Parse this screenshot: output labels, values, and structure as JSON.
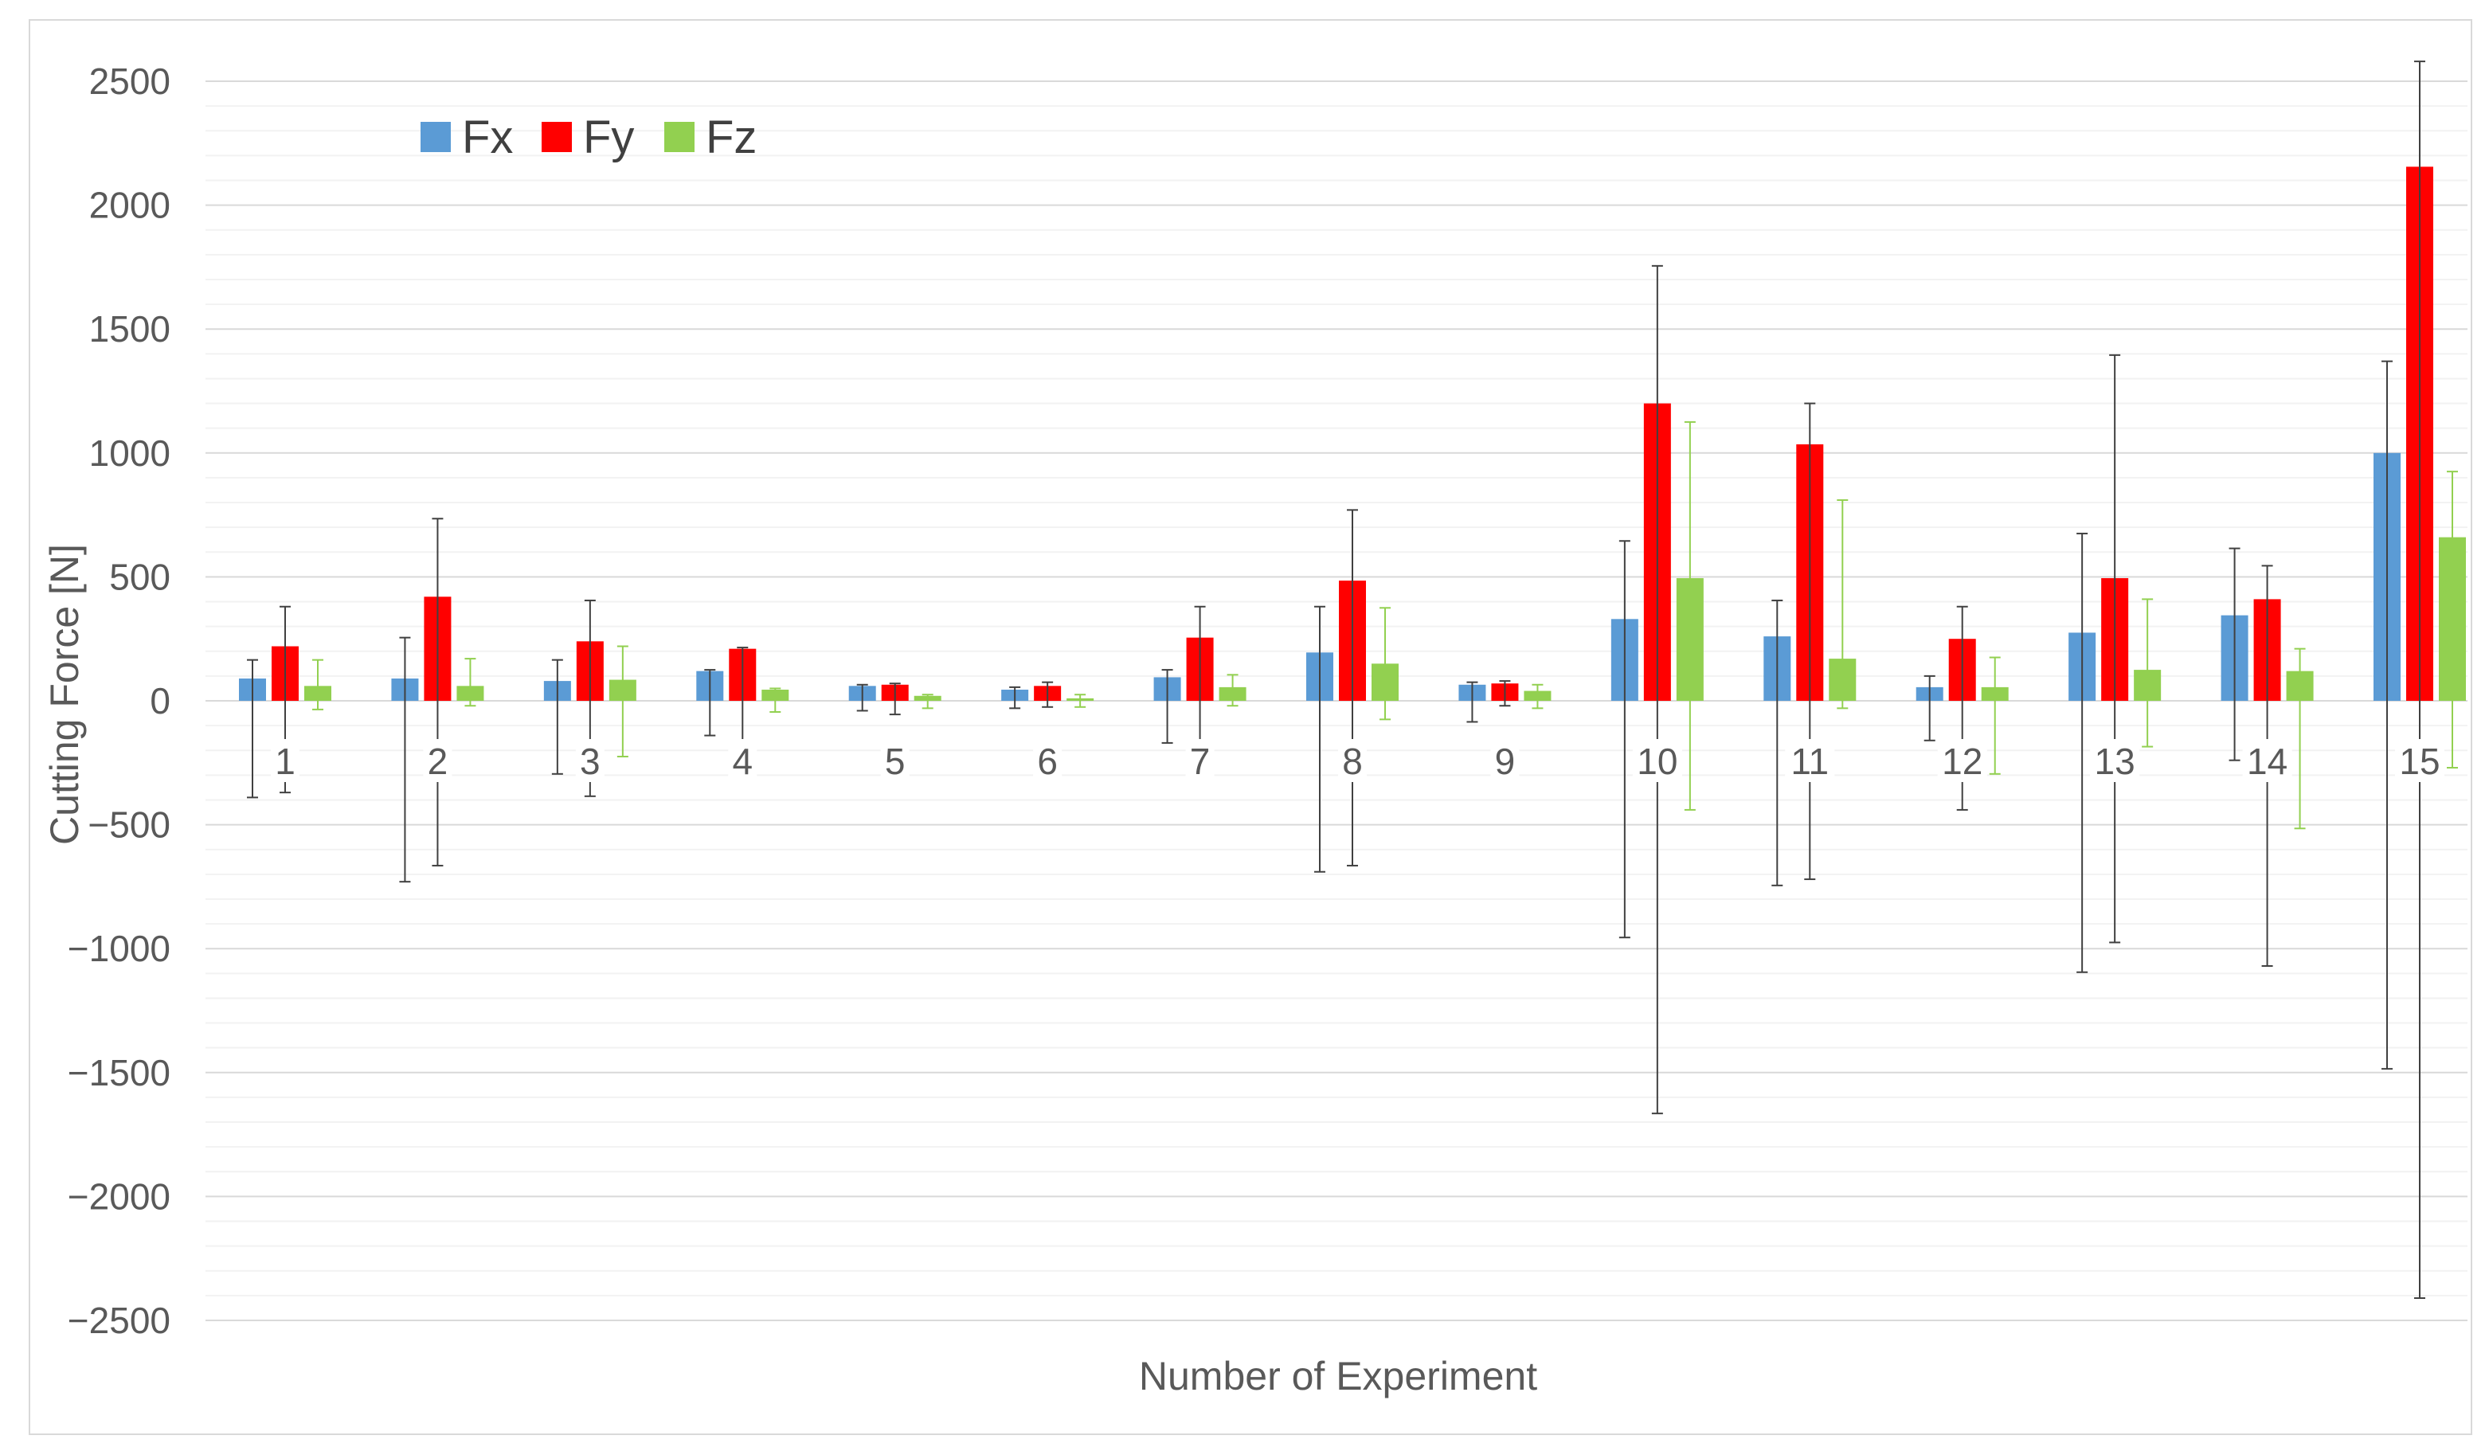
{
  "chart_data": {
    "type": "bar",
    "title": "",
    "xlabel": "Number of Experiment",
    "ylabel": "Cutting Force [N]",
    "ylim": [
      -2500,
      2500
    ],
    "yticks": [
      2500,
      2000,
      1500,
      1000,
      500,
      0,
      -500,
      -1000,
      -1500,
      -2000,
      -2500
    ],
    "ytick_labels": [
      "2500",
      "2000",
      "1500",
      "1000",
      "500",
      "0",
      "−500",
      "−1000",
      "−1500",
      "−2000",
      "−2500"
    ],
    "grid": true,
    "legend": "top-left",
    "categories": [
      "1",
      "2",
      "3",
      "4",
      "5",
      "6",
      "7",
      "8",
      "9",
      "10",
      "11",
      "12",
      "13",
      "14",
      "15"
    ],
    "series": [
      {
        "name": "Fx",
        "color": "#5b9bd5",
        "values": [
          90,
          90,
          80,
          120,
          60,
          45,
          95,
          195,
          65,
          330,
          260,
          55,
          275,
          345,
          1000
        ],
        "err_high": [
          165,
          255,
          165,
          125,
          65,
          55,
          125,
          380,
          75,
          645,
          405,
          100,
          675,
          615,
          1370
        ],
        "err_low": [
          -390,
          -730,
          -295,
          -140,
          -40,
          -30,
          -170,
          -690,
          -85,
          -955,
          -745,
          -160,
          -1095,
          -240,
          -1485
        ]
      },
      {
        "name": "Fy",
        "color": "#ff0000",
        "values": [
          220,
          420,
          240,
          210,
          65,
          60,
          255,
          485,
          70,
          1200,
          1035,
          250,
          495,
          410,
          2155
        ],
        "err_high": [
          380,
          735,
          405,
          215,
          70,
          75,
          380,
          770,
          80,
          1755,
          1200,
          380,
          1395,
          545,
          2580
        ],
        "err_low": [
          -370,
          -665,
          -385,
          -175,
          -55,
          -25,
          -235,
          -665,
          -20,
          -1665,
          -720,
          -440,
          -975,
          -1070,
          -2410
        ]
      },
      {
        "name": "Fz",
        "color": "#92d050",
        "values": [
          60,
          60,
          85,
          45,
          20,
          10,
          55,
          150,
          40,
          495,
          170,
          55,
          125,
          120,
          660
        ],
        "err_high": [
          165,
          170,
          220,
          50,
          25,
          25,
          105,
          375,
          65,
          1125,
          810,
          175,
          410,
          210,
          925
        ],
        "err_low": [
          -35,
          -20,
          -225,
          -45,
          -30,
          -25,
          -20,
          -75,
          -30,
          -440,
          -30,
          -295,
          -185,
          -515,
          -270
        ]
      }
    ]
  }
}
